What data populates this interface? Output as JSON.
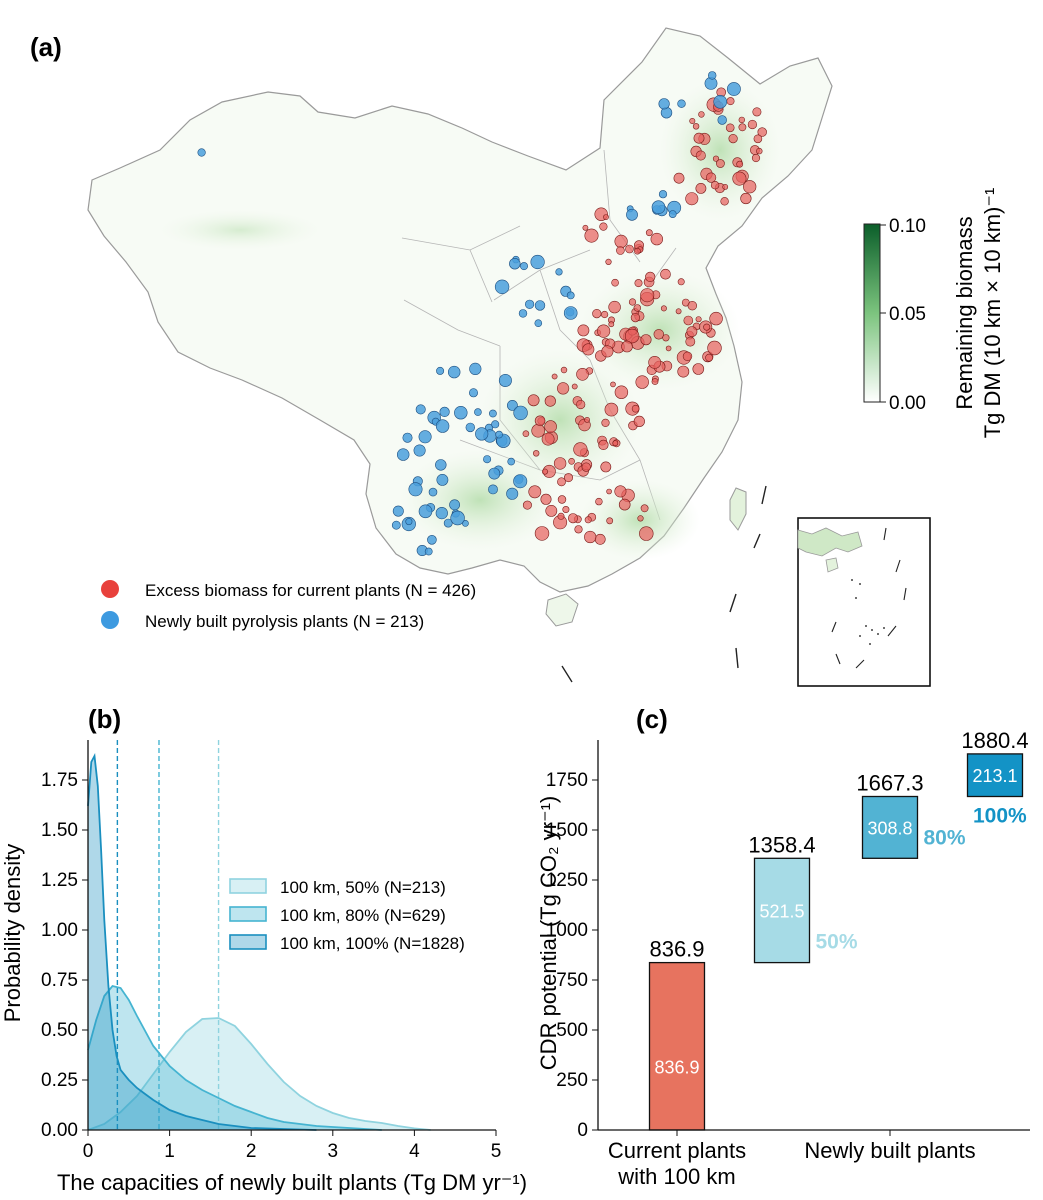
{
  "panel_a": {
    "label": "(a)",
    "legend": [
      {
        "text": "Excess biomass for current plants (N = 426)",
        "color": "#e8413c"
      },
      {
        "text": "Newly built pyrolysis plants (N = 213)",
        "color": "#3d9ae0"
      }
    ],
    "colorbar": {
      "label_line1": "Remaining biomass",
      "label_line2": "Tg DM (10 km × 10 km)⁻¹",
      "ticks": [
        "0.10",
        "0.05",
        "0.00"
      ],
      "min": 0.0,
      "max": 0.1,
      "color_low": "#ffffff",
      "color_high": "#0b5e2a"
    },
    "marker_colors": {
      "current": "#e8635f",
      "new": "#4a9fdc"
    }
  },
  "chart_data": [
    {
      "type": "area",
      "panel_label": "(b)",
      "title": "",
      "xlabel": "The capacities of newly built plants (Tg DM yr⁻¹)",
      "ylabel": "Probability density",
      "xlim": [
        0,
        5
      ],
      "ylim": [
        0,
        1.95
      ],
      "xticks": [
        "0",
        "1",
        "2",
        "3",
        "4",
        "5"
      ],
      "yticks": [
        "0.00",
        "0.25",
        "0.50",
        "0.75",
        "1.00",
        "1.25",
        "1.50",
        "1.75"
      ],
      "series": [
        {
          "name": "100 km, 50% (N=213)",
          "color": "#8fd3df",
          "mean": 1.6,
          "x": [
            0,
            0.2,
            0.4,
            0.6,
            0.8,
            1.0,
            1.2,
            1.4,
            1.6,
            1.8,
            2.0,
            2.2,
            2.4,
            2.6,
            2.8,
            3.0,
            3.2,
            3.4,
            3.6,
            3.8,
            4.0,
            4.2
          ],
          "y": [
            0.0,
            0.03,
            0.09,
            0.17,
            0.28,
            0.39,
            0.49,
            0.555,
            0.56,
            0.52,
            0.43,
            0.33,
            0.24,
            0.17,
            0.12,
            0.085,
            0.06,
            0.045,
            0.035,
            0.02,
            0.008,
            0.0
          ]
        },
        {
          "name": "100 km, 80% (N=629)",
          "color": "#45b4d1",
          "mean": 0.87,
          "x": [
            0,
            0.1,
            0.2,
            0.3,
            0.4,
            0.5,
            0.6,
            0.8,
            1.0,
            1.2,
            1.4,
            1.6,
            1.8,
            2.0,
            2.2,
            2.4,
            2.6,
            2.8,
            3.0,
            3.2,
            3.4,
            3.6
          ],
          "y": [
            0.4,
            0.55,
            0.67,
            0.72,
            0.71,
            0.65,
            0.57,
            0.42,
            0.32,
            0.25,
            0.2,
            0.16,
            0.12,
            0.09,
            0.06,
            0.04,
            0.03,
            0.02,
            0.015,
            0.01,
            0.005,
            0.0
          ]
        },
        {
          "name": "100 km, 100% (N=1828)",
          "color": "#1a8fbf",
          "mean": 0.36,
          "x": [
            0,
            0.04,
            0.08,
            0.12,
            0.16,
            0.2,
            0.25,
            0.3,
            0.35,
            0.4,
            0.5,
            0.6,
            0.7,
            0.8,
            1.0,
            1.2,
            1.4,
            1.6,
            1.8,
            2.0,
            2.4,
            2.8
          ],
          "y": [
            1.62,
            1.84,
            1.87,
            1.72,
            1.4,
            1.05,
            0.72,
            0.5,
            0.37,
            0.3,
            0.25,
            0.21,
            0.18,
            0.15,
            0.1,
            0.07,
            0.05,
            0.03,
            0.02,
            0.01,
            0.005,
            0.0
          ]
        }
      ]
    },
    {
      "type": "bar",
      "panel_label": "(c)",
      "subtype": "waterfall",
      "title": "",
      "xlabel": "",
      "ylabel": "CDR potential (Tg CO₂ yr⁻¹)",
      "ylim": [
        0,
        1950
      ],
      "yticks": [
        "0",
        "250",
        "500",
        "750",
        "1000",
        "1250",
        "1500",
        "1750"
      ],
      "category_labels": [
        {
          "line1": "Current plants",
          "line2": "with 100 km"
        },
        {
          "line1": "Newly built plants",
          "line2": ""
        }
      ],
      "bars": [
        {
          "base": 0,
          "top": 836.9,
          "total_label": "836.9",
          "inner_label": "836.9",
          "pct_label": "",
          "color": "#e7735f"
        },
        {
          "base": 836.9,
          "top": 1358.4,
          "total_label": "1358.4",
          "inner_label": "521.5",
          "pct_label": "50%",
          "color": "#a6dbe6"
        },
        {
          "base": 1358.4,
          "top": 1667.3,
          "total_label": "1667.3",
          "inner_label": "308.8",
          "pct_label": "80%",
          "color": "#52b3d3"
        },
        {
          "base": 1667.3,
          "top": 1880.4,
          "total_label": "1880.4",
          "inner_label": "213.1",
          "pct_label": "100%",
          "color": "#1393c6"
        }
      ]
    }
  ]
}
